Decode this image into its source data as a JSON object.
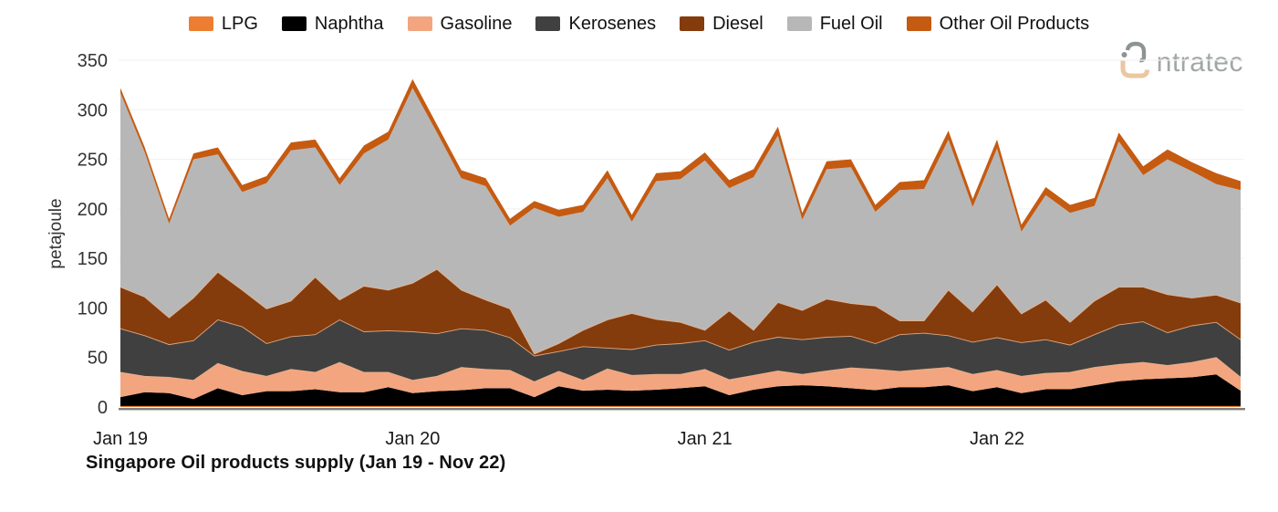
{
  "title": "Singapore Oil products supply (Jan 19 - Nov 22)",
  "logo": {
    "text": "ntratec",
    "brand": "intratec"
  },
  "legend": {
    "items": [
      {
        "label": "LPG",
        "color": "#ED7D31"
      },
      {
        "label": "Naphtha",
        "color": "#000000"
      },
      {
        "label": "Gasoline",
        "color": "#F2A57E"
      },
      {
        "label": "Kerosenes",
        "color": "#404040"
      },
      {
        "label": "Diesel",
        "color": "#843C0C"
      },
      {
        "label": "Fuel Oil",
        "color": "#B7B7B7"
      },
      {
        "label": "Other Oil Products",
        "color": "#C55A11"
      }
    ]
  },
  "chart_data": {
    "type": "area",
    "stacked": true,
    "unit": "petajoule",
    "ylabel": "petajoule",
    "ylim": [
      0,
      350
    ],
    "y_ticks": [
      0,
      50,
      100,
      150,
      200,
      250,
      300,
      350
    ],
    "x_tick_indices": [
      0,
      12,
      24,
      36
    ],
    "x_tick_labels": [
      "Jan 19",
      "Jan 20",
      "Jan 21",
      "Jan 22"
    ],
    "grid": "faint horizontal",
    "legend_position": "top center",
    "months": [
      "Jan 19",
      "Feb 19",
      "Mar 19",
      "Apr 19",
      "May 19",
      "Jun 19",
      "Jul 19",
      "Aug 19",
      "Sep 19",
      "Oct 19",
      "Nov 19",
      "Dec 19",
      "Jan 20",
      "Feb 20",
      "Mar 20",
      "Apr 20",
      "May 20",
      "Jun 20",
      "Jul 20",
      "Aug 20",
      "Sep 20",
      "Oct 20",
      "Nov 20",
      "Dec 20",
      "Jan 21",
      "Feb 21",
      "Mar 21",
      "Apr 21",
      "May 21",
      "Jun 21",
      "Jul 21",
      "Aug 21",
      "Sep 21",
      "Oct 21",
      "Nov 21",
      "Dec 21",
      "Jan 22",
      "Feb 22",
      "Mar 22",
      "Apr 22",
      "May 22",
      "Jun 22",
      "Jul 22",
      "Aug 22",
      "Sep 22",
      "Oct 22",
      "Nov 22"
    ],
    "series": [
      {
        "name": "LPG",
        "color": "#ED7D31",
        "hairline": false,
        "values": [
          1,
          1,
          1,
          1,
          1,
          1,
          1,
          1,
          1,
          1,
          1,
          1,
          1,
          1,
          1,
          1,
          1,
          1,
          1,
          1,
          1,
          1,
          1,
          1,
          1,
          1,
          1,
          1,
          1,
          1,
          1,
          1,
          1,
          1,
          1,
          1,
          1,
          1,
          1,
          1,
          1,
          1,
          1,
          1,
          1,
          1,
          1
        ]
      },
      {
        "name": "Naphtha",
        "color": "#000000",
        "hairline": false,
        "values": [
          9,
          14,
          13,
          7,
          18,
          11,
          15,
          15,
          17,
          14,
          14,
          19,
          13,
          15,
          16,
          18,
          18,
          9,
          20,
          15.5,
          16.5,
          15.5,
          16.5,
          18,
          20,
          11,
          16.5,
          20,
          21,
          20,
          18,
          16,
          19,
          19,
          21,
          15,
          19,
          13,
          17,
          17,
          21,
          25,
          27,
          28,
          29,
          32,
          15.5
        ]
      },
      {
        "name": "Gasoline",
        "color": "#F2A57E",
        "hairline": true,
        "values": [
          25,
          16,
          16,
          19,
          25,
          24,
          15,
          22,
          17,
          30,
          20,
          15,
          13,
          15,
          23,
          19,
          18,
          15.5,
          15,
          10.5,
          21,
          15.5,
          15.5,
          14,
          17,
          15.5,
          14.5,
          15.5,
          11,
          15.5,
          20.5,
          21,
          16,
          18,
          18,
          17,
          17,
          17,
          16,
          17,
          18,
          17,
          17,
          13,
          15,
          17,
          13.5
        ]
      },
      {
        "name": "Kerosenes",
        "color": "#404040",
        "hairline": true,
        "values": [
          44,
          41,
          33,
          40,
          44,
          45,
          33,
          33,
          38,
          43,
          41,
          42,
          49,
          43,
          39,
          39.5,
          33,
          26,
          20,
          34,
          21,
          26,
          29.5,
          31,
          29,
          30,
          33.5,
          34,
          35,
          34,
          32,
          26,
          37,
          36.5,
          32,
          32.5,
          33,
          34,
          34,
          27.5,
          33,
          40,
          41,
          33,
          37,
          35.5,
          38
        ]
      },
      {
        "name": "Diesel",
        "color": "#843C0C",
        "hairline": true,
        "values": [
          42,
          39,
          27,
          43,
          48,
          37,
          35,
          36,
          58,
          20,
          46,
          41,
          49,
          65,
          39,
          30.5,
          29,
          2,
          8,
          16.5,
          28.5,
          36.5,
          26,
          21.5,
          10.5,
          39.5,
          12,
          35,
          29.5,
          38.5,
          33,
          38,
          14,
          12.5,
          46,
          30.5,
          53.5,
          29,
          40,
          23,
          34,
          38,
          35,
          38.5,
          28,
          27.5,
          37
        ]
      },
      {
        "name": "Fuel Oil",
        "color": "#B7B7B7",
        "hairline": false,
        "values": [
          196,
          146,
          95,
          140,
          119,
          99,
          127,
          152,
          131,
          116,
          134,
          152,
          197,
          138,
          113,
          115,
          84,
          147.5,
          128,
          119.5,
          143,
          92.5,
          139.5,
          144.5,
          171.5,
          124,
          154.5,
          168.5,
          91.5,
          131,
          137.5,
          95,
          132,
          133,
          152,
          106,
          137.5,
          83,
          106,
          110.5,
          96,
          147,
          113,
          136.5,
          128,
          112,
          114
        ]
      },
      {
        "name": "Other Oil Products",
        "color": "#C55A11",
        "hairline": false,
        "values": [
          5,
          5,
          5,
          6,
          7,
          7,
          7,
          8,
          8,
          7,
          8,
          8,
          9,
          8,
          8,
          8,
          7,
          7,
          7,
          7,
          8,
          7,
          8,
          8,
          8,
          8,
          8,
          9,
          7,
          8,
          8,
          7,
          8,
          9,
          9,
          8,
          9,
          7,
          8,
          8,
          8,
          9,
          9,
          10,
          9,
          11,
          9
        ]
      }
    ],
    "totals_reference": {
      "Jan 19": 322,
      "Mar 19": 190,
      "Jan 20": 331,
      "Jun 20": 208,
      "Apr 21": 283,
      "Nov 21": 279,
      "Feb 22": 184,
      "Jun 22": 277,
      "Nov 22": 228
    }
  }
}
